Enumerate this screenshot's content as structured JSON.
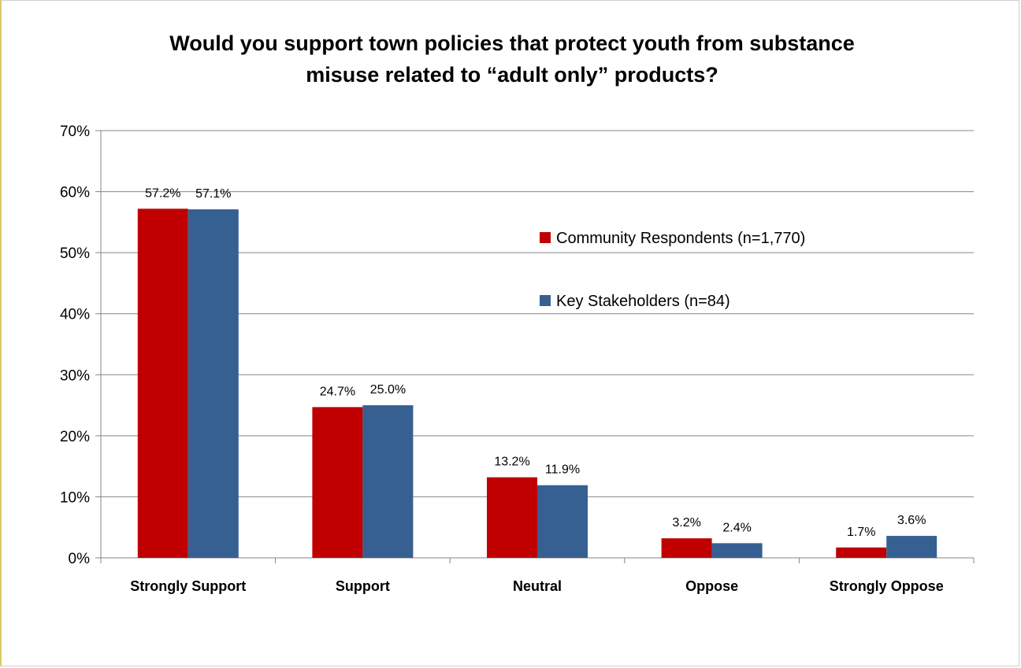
{
  "chart_data": {
    "type": "bar",
    "title_lines": [
      "Would you support town policies that protect youth from substance",
      "misuse related to “adult only” products?"
    ],
    "categories": [
      "Strongly Support",
      "Support",
      "Neutral",
      "Oppose",
      "Strongly Oppose"
    ],
    "series": [
      {
        "name": "Community Respondents (n=1,770)",
        "color": "#c00000",
        "values": [
          57.2,
          24.7,
          13.2,
          3.2,
          1.7
        ],
        "labels": [
          "57.2%",
          "24.7%",
          "13.2%",
          "3.2%",
          "1.7%"
        ]
      },
      {
        "name": "Key Stakeholders (n=84)",
        "color": "#376092",
        "values": [
          57.1,
          25.0,
          11.9,
          2.4,
          3.6
        ],
        "labels": [
          "57.1%",
          "25.0%",
          "11.9%",
          "2.4%",
          "3.6%"
        ]
      }
    ],
    "ylim": [
      0,
      70
    ],
    "yticks": [
      0,
      10,
      20,
      30,
      40,
      50,
      60,
      70
    ],
    "ytick_labels": [
      "0%",
      "10%",
      "20%",
      "30%",
      "40%",
      "50%",
      "60%",
      "70%"
    ],
    "grid": true,
    "legend_position": "right"
  }
}
